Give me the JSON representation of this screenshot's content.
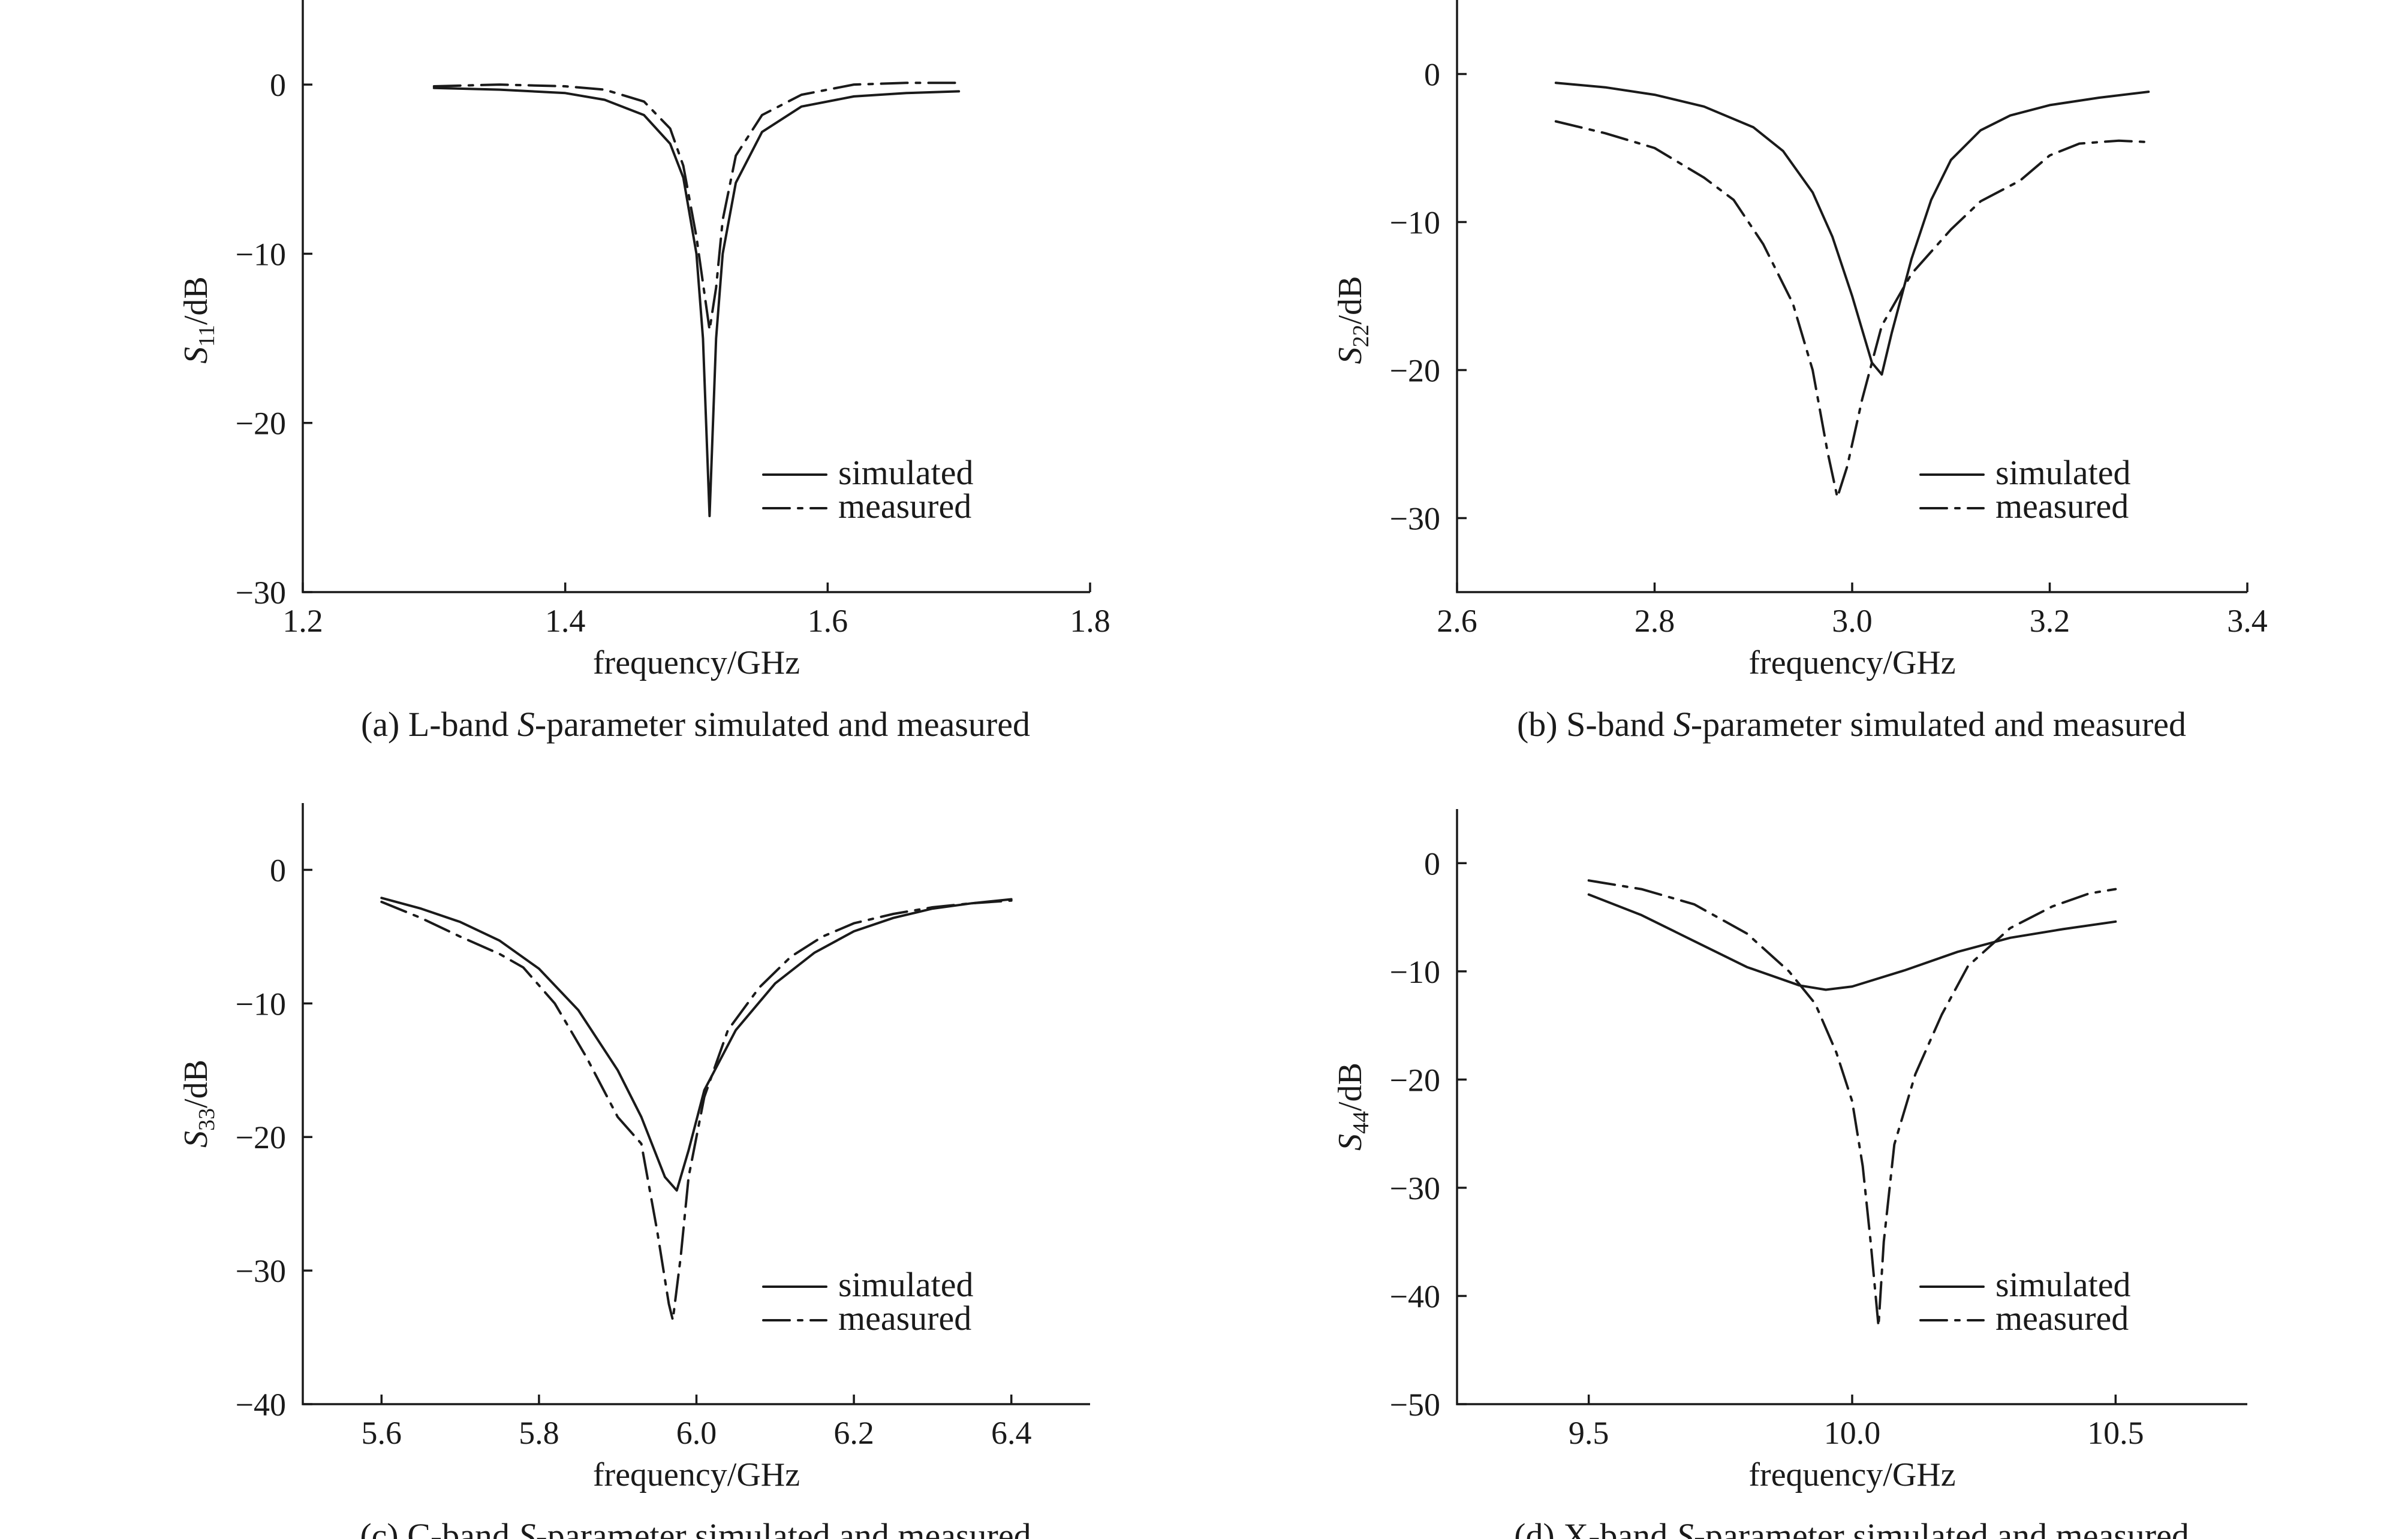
{
  "chart_data": [
    {
      "type": "line",
      "caption_prefix": "(a) L-band ",
      "caption_italic": "S",
      "caption_suffix": "-parameter simulated and measured",
      "xlabel": "frequency/GHz",
      "ylabel_main": "S",
      "ylabel_sub": "11",
      "ylabel_unit": "/dB",
      "xlim": [
        1.2,
        1.8
      ],
      "ylim": [
        -30,
        5
      ],
      "xticks": [
        1.2,
        1.4,
        1.6,
        1.8
      ],
      "xtick_labels": [
        "1.2",
        "1.4",
        "1.6",
        "1.8"
      ],
      "yticks": [
        -30,
        -20,
        -10,
        0
      ],
      "ytick_labels": [
        "−30",
        "−20",
        "−10",
        "0"
      ],
      "legend_position": "bottom-right",
      "series": [
        {
          "name": "simulated",
          "style": "solid",
          "points": [
            [
              1.3,
              -0.2
            ],
            [
              1.35,
              -0.3
            ],
            [
              1.4,
              -0.5
            ],
            [
              1.43,
              -0.9
            ],
            [
              1.46,
              -1.8
            ],
            [
              1.48,
              -3.5
            ],
            [
              1.49,
              -5.5
            ],
            [
              1.5,
              -10
            ],
            [
              1.505,
              -15
            ],
            [
              1.51,
              -25.5
            ],
            [
              1.515,
              -15
            ],
            [
              1.52,
              -10
            ],
            [
              1.53,
              -5.8
            ],
            [
              1.55,
              -2.8
            ],
            [
              1.58,
              -1.3
            ],
            [
              1.62,
              -0.7
            ],
            [
              1.66,
              -0.5
            ],
            [
              1.7,
              -0.4
            ]
          ]
        },
        {
          "name": "measured",
          "style": "dashdot",
          "points": [
            [
              1.3,
              -0.1
            ],
            [
              1.35,
              0.0
            ],
            [
              1.4,
              -0.1
            ],
            [
              1.43,
              -0.3
            ],
            [
              1.46,
              -1.0
            ],
            [
              1.48,
              -2.6
            ],
            [
              1.49,
              -4.8
            ],
            [
              1.5,
              -9
            ],
            [
              1.51,
              -14.5
            ],
            [
              1.515,
              -12
            ],
            [
              1.52,
              -8
            ],
            [
              1.53,
              -4.2
            ],
            [
              1.55,
              -1.8
            ],
            [
              1.58,
              -0.6
            ],
            [
              1.62,
              0.0
            ],
            [
              1.66,
              0.1
            ],
            [
              1.7,
              0.1
            ]
          ]
        }
      ]
    },
    {
      "type": "line",
      "caption_prefix": "(b) S-band ",
      "caption_italic": "S",
      "caption_suffix": "-parameter simulated and measured",
      "xlabel": "frequency/GHz",
      "ylabel_main": "S",
      "ylabel_sub": "22",
      "ylabel_unit": "/dB",
      "xlim": [
        2.6,
        3.4
      ],
      "ylim": [
        -35,
        5
      ],
      "xticks": [
        2.6,
        2.8,
        3.0,
        3.2,
        3.4
      ],
      "xtick_labels": [
        "2.6",
        "2.8",
        "3.0",
        "3.2",
        "3.4"
      ],
      "yticks": [
        -30,
        -20,
        -10,
        0
      ],
      "ytick_labels": [
        "−30",
        "−20",
        "−10",
        "0"
      ],
      "legend_position": "bottom-right",
      "series": [
        {
          "name": "simulated",
          "style": "solid",
          "points": [
            [
              2.7,
              -0.6
            ],
            [
              2.75,
              -0.9
            ],
            [
              2.8,
              -1.4
            ],
            [
              2.85,
              -2.2
            ],
            [
              2.9,
              -3.6
            ],
            [
              2.93,
              -5.2
            ],
            [
              2.96,
              -8.0
            ],
            [
              2.98,
              -11.0
            ],
            [
              3.0,
              -15.0
            ],
            [
              3.02,
              -19.5
            ],
            [
              3.03,
              -20.3
            ],
            [
              3.04,
              -17.5
            ],
            [
              3.06,
              -12.5
            ],
            [
              3.08,
              -8.5
            ],
            [
              3.1,
              -5.8
            ],
            [
              3.13,
              -3.8
            ],
            [
              3.16,
              -2.8
            ],
            [
              3.2,
              -2.1
            ],
            [
              3.25,
              -1.6
            ],
            [
              3.3,
              -1.2
            ]
          ]
        },
        {
          "name": "measured",
          "style": "dashdot",
          "points": [
            [
              2.7,
              -3.2
            ],
            [
              2.75,
              -4.0
            ],
            [
              2.8,
              -5.0
            ],
            [
              2.85,
              -7.0
            ],
            [
              2.88,
              -8.5
            ],
            [
              2.91,
              -11.5
            ],
            [
              2.94,
              -15.5
            ],
            [
              2.96,
              -20.0
            ],
            [
              2.975,
              -25.5
            ],
            [
              2.985,
              -28.6
            ],
            [
              2.995,
              -26.5
            ],
            [
              3.01,
              -22.0
            ],
            [
              3.03,
              -17.0
            ],
            [
              3.06,
              -13.5
            ],
            [
              3.1,
              -10.5
            ],
            [
              3.13,
              -8.6
            ],
            [
              3.17,
              -7.2
            ],
            [
              3.2,
              -5.5
            ],
            [
              3.23,
              -4.7
            ],
            [
              3.27,
              -4.5
            ],
            [
              3.3,
              -4.6
            ]
          ]
        }
      ]
    },
    {
      "type": "line",
      "caption_prefix": "(c) C-band ",
      "caption_italic": "S",
      "caption_suffix": "-parameter simulated and measured",
      "xlabel": "frequency/GHz",
      "ylabel_main": "S",
      "ylabel_sub": "33",
      "ylabel_unit": "/dB",
      "xlim": [
        5.5,
        6.5
      ],
      "ylim": [
        -40,
        5
      ],
      "xticks": [
        5.6,
        5.8,
        6.0,
        6.2,
        6.4
      ],
      "xtick_labels": [
        "5.6",
        "5.8",
        "6.0",
        "6.2",
        "6.4"
      ],
      "yticks": [
        -40,
        -30,
        -20,
        -10,
        0
      ],
      "ytick_labels": [
        "−40",
        "−30",
        "−20",
        "−10",
        "0"
      ],
      "legend_position": "bottom-right",
      "series": [
        {
          "name": "simulated",
          "style": "solid",
          "points": [
            [
              5.6,
              -2.1
            ],
            [
              5.65,
              -2.9
            ],
            [
              5.7,
              -3.9
            ],
            [
              5.75,
              -5.3
            ],
            [
              5.8,
              -7.4
            ],
            [
              5.85,
              -10.5
            ],
            [
              5.9,
              -15.0
            ],
            [
              5.93,
              -18.5
            ],
            [
              5.96,
              -23.0
            ],
            [
              5.975,
              -24.0
            ],
            [
              5.99,
              -21.0
            ],
            [
              6.01,
              -16.5
            ],
            [
              6.05,
              -12.0
            ],
            [
              6.1,
              -8.5
            ],
            [
              6.15,
              -6.2
            ],
            [
              6.2,
              -4.6
            ],
            [
              6.25,
              -3.6
            ],
            [
              6.3,
              -2.9
            ],
            [
              6.35,
              -2.5
            ],
            [
              6.4,
              -2.2
            ]
          ]
        },
        {
          "name": "measured",
          "style": "dashdot",
          "points": [
            [
              5.6,
              -2.4
            ],
            [
              5.65,
              -3.6
            ],
            [
              5.7,
              -5.0
            ],
            [
              5.75,
              -6.3
            ],
            [
              5.78,
              -7.3
            ],
            [
              5.82,
              -10.0
            ],
            [
              5.86,
              -14.0
            ],
            [
              5.9,
              -18.5
            ],
            [
              5.93,
              -20.5
            ],
            [
              5.95,
              -27.0
            ],
            [
              5.965,
              -32.5
            ],
            [
              5.97,
              -33.7
            ],
            [
              5.98,
              -29.0
            ],
            [
              5.99,
              -23.0
            ],
            [
              6.01,
              -17.0
            ],
            [
              6.04,
              -12.0
            ],
            [
              6.08,
              -8.8
            ],
            [
              6.12,
              -6.5
            ],
            [
              6.16,
              -5.0
            ],
            [
              6.2,
              -4.0
            ],
            [
              6.25,
              -3.3
            ],
            [
              6.3,
              -2.8
            ],
            [
              6.35,
              -2.5
            ],
            [
              6.4,
              -2.3
            ]
          ]
        }
      ]
    },
    {
      "type": "line",
      "caption_prefix": "(d) X-band ",
      "caption_italic": "S",
      "caption_suffix": "-parameter simulated and measured",
      "xlabel": "frequency/GHz",
      "ylabel_main": "S",
      "ylabel_sub": "44",
      "ylabel_unit": "/dB",
      "xlim": [
        9.25,
        10.75
      ],
      "ylim": [
        -50,
        5
      ],
      "xticks": [
        9.5,
        10.0,
        10.5
      ],
      "xtick_labels": [
        "9.5",
        "10.0",
        "10.5"
      ],
      "yticks": [
        -50,
        -40,
        -30,
        -20,
        -10,
        0
      ],
      "ytick_labels": [
        "−50",
        "−40",
        "−30",
        "−20",
        "−10",
        "0"
      ],
      "legend_position": "bottom-right",
      "series": [
        {
          "name": "simulated",
          "style": "solid",
          "points": [
            [
              9.5,
              -2.9
            ],
            [
              9.6,
              -4.8
            ],
            [
              9.7,
              -7.2
            ],
            [
              9.8,
              -9.6
            ],
            [
              9.9,
              -11.3
            ],
            [
              9.95,
              -11.7
            ],
            [
              10.0,
              -11.4
            ],
            [
              10.1,
              -9.9
            ],
            [
              10.2,
              -8.2
            ],
            [
              10.3,
              -6.9
            ],
            [
              10.4,
              -6.1
            ],
            [
              10.5,
              -5.4
            ]
          ]
        },
        {
          "name": "measured",
          "style": "dashdot",
          "points": [
            [
              9.5,
              -1.6
            ],
            [
              9.6,
              -2.4
            ],
            [
              9.7,
              -3.8
            ],
            [
              9.8,
              -6.5
            ],
            [
              9.88,
              -10.0
            ],
            [
              9.93,
              -13.0
            ],
            [
              9.97,
              -17.5
            ],
            [
              10.0,
              -22.0
            ],
            [
              10.02,
              -28.0
            ],
            [
              10.035,
              -35.0
            ],
            [
              10.05,
              -42.8
            ],
            [
              10.06,
              -35.0
            ],
            [
              10.08,
              -26.0
            ],
            [
              10.12,
              -19.5
            ],
            [
              10.17,
              -14.0
            ],
            [
              10.22,
              -9.5
            ],
            [
              10.3,
              -6.0
            ],
            [
              10.38,
              -4.0
            ],
            [
              10.45,
              -2.8
            ],
            [
              10.5,
              -2.4
            ]
          ]
        }
      ]
    }
  ]
}
